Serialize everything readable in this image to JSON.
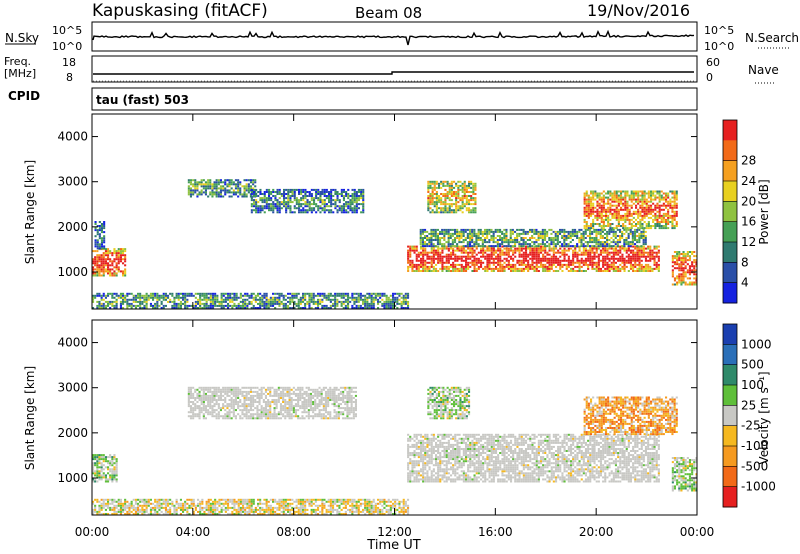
{
  "header": {
    "radar": "Kapuskasing (fitACF)",
    "beam": "Beam 08",
    "date": "19/Nov/2016"
  },
  "top_panels": {
    "nsky_label": "N.Sky",
    "nsearch_label": "N.Search",
    "noise_ticks": [
      "10^5",
      "10^0"
    ],
    "freq_label_1": "Freq.",
    "freq_label_2": "[MHz]",
    "freq_ticks": [
      "18",
      "8"
    ],
    "nave_label": "Nave",
    "nave_ticks": [
      "60",
      "0"
    ],
    "cpid_label": "CPID",
    "cpid_text": "tau (fast) 503"
  },
  "chart_data": [
    {
      "type": "heatmap",
      "name": "power",
      "ylabel": "Slant Range [km]",
      "xlabel": "Time UT",
      "x_ticks": [
        "00:00",
        "04:00",
        "08:00",
        "12:00",
        "16:00",
        "20:00",
        "00:00"
      ],
      "y_ticks": [
        1000,
        2000,
        3000,
        4000
      ],
      "ylim": [
        180,
        4500
      ],
      "xlim_hours": [
        0,
        24
      ],
      "colorbar": {
        "label": "Power [dB]",
        "ticks": [
          "4",
          "8",
          "12",
          "16",
          "20",
          "24",
          "28"
        ],
        "colors": [
          "#1522e0",
          "#2a4fa8",
          "#2f7a70",
          "#45a055",
          "#8fc240",
          "#e8d020",
          "#f5a020",
          "#f26a18",
          "#e62020"
        ]
      },
      "regions": [
        {
          "t": [
            0.0,
            1.3
          ],
          "r": [
            900,
            1500
          ],
          "level": 0.8
        },
        {
          "t": [
            0.1,
            0.5
          ],
          "r": [
            1500,
            2100
          ],
          "level": 0.2
        },
        {
          "t": [
            3.8,
            6.5
          ],
          "r": [
            2650,
            3050
          ],
          "level": 0.3
        },
        {
          "t": [
            6.3,
            10.8
          ],
          "r": [
            2300,
            2800
          ],
          "level": 0.25
        },
        {
          "t": [
            0.0,
            12.5
          ],
          "r": [
            180,
            500
          ],
          "level": 0.3
        },
        {
          "t": [
            12.5,
            22.5
          ],
          "r": [
            1000,
            1550
          ],
          "level": 0.85
        },
        {
          "t": [
            13.0,
            22.0
          ],
          "r": [
            1550,
            1950
          ],
          "level": 0.35
        },
        {
          "t": [
            13.3,
            15.2
          ],
          "r": [
            2300,
            3000
          ],
          "level": 0.55
        },
        {
          "t": [
            19.5,
            23.2
          ],
          "r": [
            1950,
            2800
          ],
          "level": 0.65
        },
        {
          "t": [
            23.0,
            24.0
          ],
          "r": [
            700,
            1450
          ],
          "level": 0.75
        }
      ]
    },
    {
      "type": "heatmap",
      "name": "velocity",
      "ylabel": "Slant Range [km]",
      "xlabel": "Time UT",
      "x_ticks": [
        "00:00",
        "04:00",
        "08:00",
        "12:00",
        "16:00",
        "20:00",
        "00:00"
      ],
      "y_ticks": [
        1000,
        2000,
        3000,
        4000
      ],
      "ylim": [
        180,
        4500
      ],
      "xlim_hours": [
        0,
        24
      ],
      "colorbar": {
        "label": "Velocity [m s⁻¹]",
        "ticks": [
          "1000",
          "500",
          "100",
          "25",
          "-25",
          "-100",
          "-500",
          "-1000"
        ],
        "colors": [
          "#1a3fb0",
          "#2a6fb8",
          "#2f8a6a",
          "#5fbf3a",
          "#c8c8c4",
          "#f5b820",
          "#f59a20",
          "#f26a18",
          "#e62020"
        ]
      },
      "regions": [
        {
          "t": [
            0.0,
            1.0
          ],
          "r": [
            900,
            1500
          ],
          "kind": "mix_green"
        },
        {
          "t": [
            3.8,
            10.5
          ],
          "r": [
            2300,
            3000
          ],
          "kind": "grey"
        },
        {
          "t": [
            0.0,
            12.5
          ],
          "r": [
            180,
            500
          ],
          "kind": "mix_yellow"
        },
        {
          "t": [
            12.5,
            22.5
          ],
          "r": [
            900,
            1950
          ],
          "kind": "grey"
        },
        {
          "t": [
            13.3,
            15.0
          ],
          "r": [
            2300,
            3000
          ],
          "kind": "mix_green"
        },
        {
          "t": [
            19.5,
            23.2
          ],
          "r": [
            1950,
            2800
          ],
          "kind": "mix_orange"
        },
        {
          "t": [
            23.0,
            24.0
          ],
          "r": [
            700,
            1450
          ],
          "kind": "mix_green"
        }
      ]
    }
  ]
}
